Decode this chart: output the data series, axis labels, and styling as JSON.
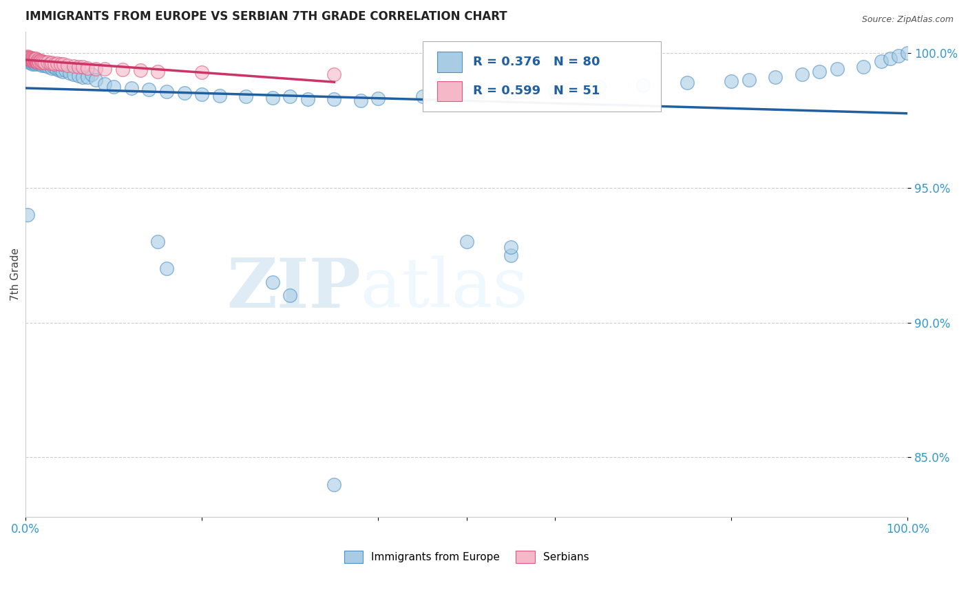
{
  "title": "IMMIGRANTS FROM EUROPE VS SERBIAN 7TH GRADE CORRELATION CHART",
  "source": "Source: ZipAtlas.com",
  "ylabel": "7th Grade",
  "ytick_labels": [
    "85.0%",
    "90.0%",
    "95.0%",
    "100.0%"
  ],
  "ytick_values": [
    0.85,
    0.9,
    0.95,
    1.0
  ],
  "xmin": 0.0,
  "xmax": 1.0,
  "ymin": 0.828,
  "ymax": 1.008,
  "legend_label_blue": "Immigrants from Europe",
  "legend_label_pink": "Serbians",
  "R_blue": 0.376,
  "N_blue": 80,
  "R_pink": 0.599,
  "N_pink": 51,
  "blue_color": "#a8cce4",
  "pink_color": "#f4b8c8",
  "blue_edge_color": "#4a90c4",
  "pink_edge_color": "#e05880",
  "blue_line_color": "#2060a0",
  "pink_line_color": "#cc3366",
  "watermark_zip": "ZIP",
  "watermark_atlas": "atlas",
  "blue_scatter_x": [
    0.002,
    0.004,
    0.005,
    0.005,
    0.006,
    0.006,
    0.007,
    0.007,
    0.008,
    0.008,
    0.009,
    0.009,
    0.01,
    0.01,
    0.011,
    0.011,
    0.012,
    0.012,
    0.013,
    0.014,
    0.015,
    0.015,
    0.016,
    0.017,
    0.018,
    0.019,
    0.02,
    0.02,
    0.022,
    0.024,
    0.026,
    0.028,
    0.03,
    0.032,
    0.035,
    0.038,
    0.04,
    0.042,
    0.045,
    0.05,
    0.055,
    0.06,
    0.065,
    0.07,
    0.075,
    0.08,
    0.09,
    0.1,
    0.12,
    0.14,
    0.16,
    0.18,
    0.2,
    0.22,
    0.25,
    0.28,
    0.3,
    0.32,
    0.35,
    0.38,
    0.4,
    0.45,
    0.5,
    0.55,
    0.6,
    0.62,
    0.65,
    0.7,
    0.75,
    0.8,
    0.82,
    0.85,
    0.88,
    0.9,
    0.92,
    0.95,
    0.97,
    0.98,
    0.99,
    1.0
  ],
  "blue_scatter_y": [
    0.998,
    0.9975,
    0.997,
    0.9965,
    0.9975,
    0.998,
    0.9965,
    0.997,
    0.996,
    0.9975,
    0.9965,
    0.997,
    0.9975,
    0.9968,
    0.996,
    0.9975,
    0.997,
    0.9965,
    0.9975,
    0.9968,
    0.996,
    0.9972,
    0.9965,
    0.997,
    0.996,
    0.9955,
    0.9968,
    0.996,
    0.9955,
    0.9962,
    0.995,
    0.9955,
    0.9945,
    0.9948,
    0.994,
    0.9935,
    0.9938,
    0.993,
    0.9935,
    0.9925,
    0.992,
    0.9915,
    0.991,
    0.991,
    0.992,
    0.99,
    0.9885,
    0.9875,
    0.987,
    0.9865,
    0.9858,
    0.9852,
    0.9848,
    0.9842,
    0.984,
    0.9835,
    0.9838,
    0.983,
    0.983,
    0.9825,
    0.9832,
    0.984,
    0.985,
    0.9855,
    0.986,
    0.987,
    0.9875,
    0.988,
    0.989,
    0.9895,
    0.99,
    0.991,
    0.992,
    0.993,
    0.994,
    0.995,
    0.997,
    0.998,
    0.999,
    1.0
  ],
  "pink_scatter_x": [
    0.001,
    0.002,
    0.003,
    0.003,
    0.004,
    0.004,
    0.005,
    0.005,
    0.006,
    0.006,
    0.007,
    0.007,
    0.008,
    0.008,
    0.009,
    0.009,
    0.01,
    0.01,
    0.011,
    0.011,
    0.012,
    0.012,
    0.013,
    0.013,
    0.014,
    0.015,
    0.016,
    0.017,
    0.018,
    0.019,
    0.02,
    0.022,
    0.025,
    0.028,
    0.03,
    0.033,
    0.036,
    0.04,
    0.043,
    0.048,
    0.055,
    0.06,
    0.065,
    0.07,
    0.08,
    0.09,
    0.11,
    0.13,
    0.15,
    0.2,
    0.35
  ],
  "pink_scatter_y": [
    0.9985,
    0.9988,
    0.998,
    0.9985,
    0.9978,
    0.9982,
    0.9978,
    0.9982,
    0.9975,
    0.998,
    0.9978,
    0.9982,
    0.9975,
    0.998,
    0.9972,
    0.9978,
    0.9975,
    0.998,
    0.9972,
    0.9978,
    0.9975,
    0.998,
    0.9972,
    0.9968,
    0.9975,
    0.997,
    0.9968,
    0.9972,
    0.9965,
    0.997,
    0.9968,
    0.9965,
    0.9968,
    0.9962,
    0.9965,
    0.996,
    0.9962,
    0.9958,
    0.996,
    0.9955,
    0.9952,
    0.995,
    0.9948,
    0.9945,
    0.9942,
    0.994,
    0.9938,
    0.9935,
    0.9932,
    0.9928,
    0.992
  ],
  "blue_outliers_x": [
    0.002,
    0.15,
    0.16,
    0.28,
    0.3,
    0.35,
    0.5,
    0.55,
    0.55
  ],
  "blue_outliers_y": [
    0.94,
    0.93,
    0.92,
    0.915,
    0.91,
    0.84,
    0.93,
    0.925,
    0.928
  ]
}
